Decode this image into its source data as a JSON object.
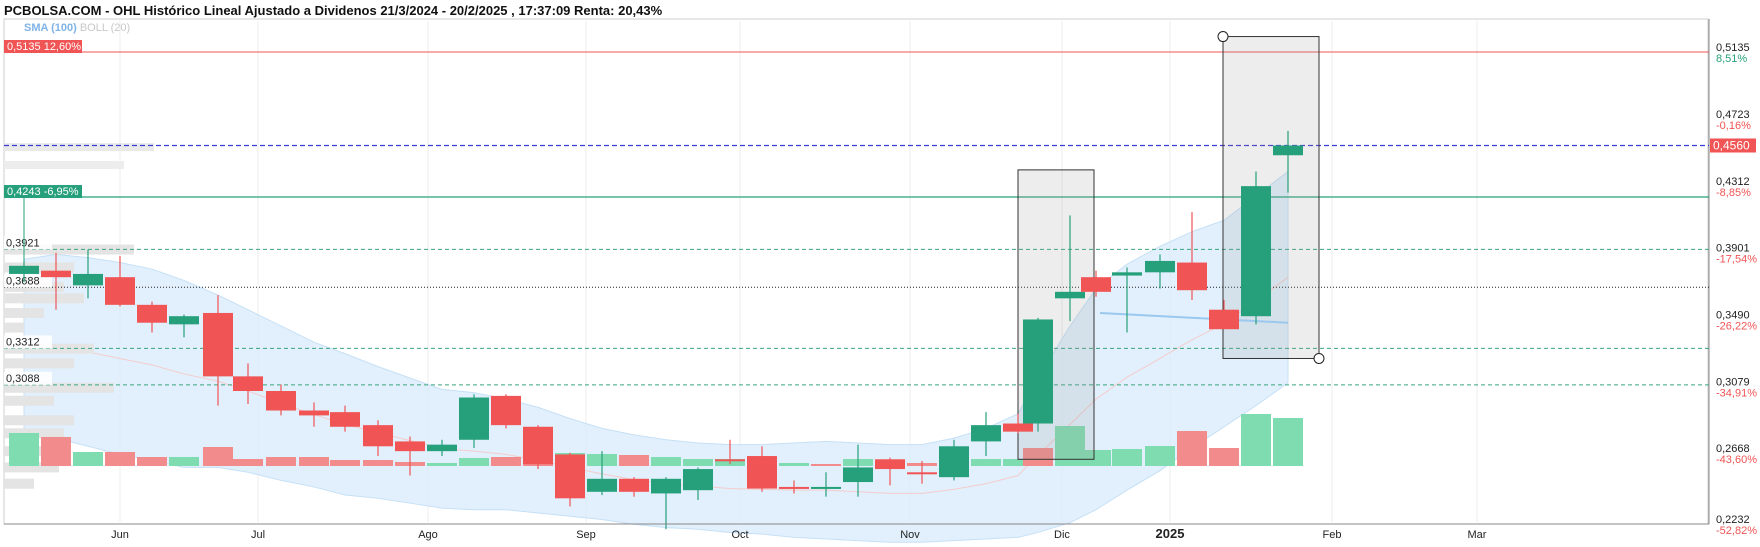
{
  "header": {
    "title": "PCBOLSA.COM - OHL Histórico Lineal Ajustado a Dividenos 21/3/2024 - 20/2/2025 , 17:37:09 Renta: 20,43%",
    "indicator_sma": "SMA (100)",
    "indicator_boll": "BOLL (20)"
  },
  "colors": {
    "up": "#26a07a",
    "down": "#f05454",
    "up_volume": "#7fdcb0",
    "down_volume": "#f28c8c",
    "band": "#dcedfb",
    "price_line": "#3b3bd9",
    "resistance": "#f05454",
    "support": "#26a07a"
  },
  "chart_data": {
    "type": "candlestick",
    "y_range": [
      0.205,
      0.535
    ],
    "right_axis": [
      {
        "price": "0,5135",
        "pct": "8,51%"
      },
      {
        "price": "0,4723",
        "pct": "-0,16%"
      },
      {
        "price": "0,4312",
        "pct": "-8,85%"
      },
      {
        "price": "0,3901",
        "pct": "-17,54%"
      },
      {
        "price": "0,3490",
        "pct": "-26,22%"
      },
      {
        "price": "0,3079",
        "pct": "-34,91%"
      },
      {
        "price": "0,2668",
        "pct": "-43,60%"
      },
      {
        "price": "0,2232",
        "pct": "-52,82%"
      }
    ],
    "current_price": {
      "value": 0.456,
      "label": "0,4560"
    },
    "resistance": {
      "value": 0.5135,
      "label": "0,5135",
      "pct": "12,60%"
    },
    "support": {
      "value": 0.4243,
      "label": "0,4243",
      "pct": "-6,95%"
    },
    "left_levels": [
      {
        "value": 0.3921,
        "label": "0,3921"
      },
      {
        "value": 0.3688,
        "label": "0,3688"
      },
      {
        "value": 0.3312,
        "label": "0,3312"
      },
      {
        "value": 0.3088,
        "label": "0,3088"
      }
    ],
    "x_labels": [
      "Jun",
      "Jul",
      "Ago",
      "Sep",
      "Oct",
      "Nov",
      "Dic",
      "2025",
      "Feb",
      "Mar"
    ],
    "candles": [
      {
        "o": 0.377,
        "h": 0.385,
        "l": 0.372,
        "c": 0.382
      },
      {
        "o": 0.379,
        "h": 0.39,
        "l": 0.355,
        "c": 0.375
      },
      {
        "o": 0.37,
        "h": 0.392,
        "l": 0.362,
        "c": 0.377
      },
      {
        "o": 0.375,
        "h": 0.388,
        "l": 0.357,
        "c": 0.358
      },
      {
        "o": 0.358,
        "h": 0.36,
        "l": 0.341,
        "c": 0.347
      },
      {
        "o": 0.346,
        "h": 0.352,
        "l": 0.338,
        "c": 0.351
      },
      {
        "o": 0.353,
        "h": 0.364,
        "l": 0.296,
        "c": 0.314
      },
      {
        "o": 0.314,
        "h": 0.322,
        "l": 0.297,
        "c": 0.305
      },
      {
        "o": 0.305,
        "h": 0.309,
        "l": 0.29,
        "c": 0.293
      },
      {
        "o": 0.293,
        "h": 0.298,
        "l": 0.283,
        "c": 0.29
      },
      {
        "o": 0.292,
        "h": 0.296,
        "l": 0.28,
        "c": 0.283
      },
      {
        "o": 0.284,
        "h": 0.287,
        "l": 0.265,
        "c": 0.271
      },
      {
        "o": 0.274,
        "h": 0.277,
        "l": 0.253,
        "c": 0.268
      },
      {
        "o": 0.268,
        "h": 0.275,
        "l": 0.265,
        "c": 0.272
      },
      {
        "o": 0.275,
        "h": 0.303,
        "l": 0.27,
        "c": 0.301
      },
      {
        "o": 0.302,
        "h": 0.303,
        "l": 0.282,
        "c": 0.284
      },
      {
        "o": 0.283,
        "h": 0.284,
        "l": 0.257,
        "c": 0.26
      },
      {
        "o": 0.266,
        "h": 0.267,
        "l": 0.234,
        "c": 0.239
      },
      {
        "o": 0.243,
        "h": 0.268,
        "l": 0.241,
        "c": 0.251
      },
      {
        "o": 0.251,
        "h": 0.252,
        "l": 0.24,
        "c": 0.243
      },
      {
        "o": 0.242,
        "h": 0.252,
        "l": 0.22,
        "c": 0.251
      },
      {
        "o": 0.244,
        "h": 0.258,
        "l": 0.238,
        "c": 0.257
      },
      {
        "o": 0.263,
        "h": 0.275,
        "l": 0.26,
        "c": 0.262
      },
      {
        "o": 0.265,
        "h": 0.271,
        "l": 0.243,
        "c": 0.245
      },
      {
        "o": 0.246,
        "h": 0.25,
        "l": 0.242,
        "c": 0.245
      },
      {
        "o": 0.245,
        "h": 0.255,
        "l": 0.24,
        "c": 0.246
      },
      {
        "o": 0.249,
        "h": 0.272,
        "l": 0.24,
        "c": 0.258
      },
      {
        "o": 0.263,
        "h": 0.264,
        "l": 0.247,
        "c": 0.257
      },
      {
        "o": 0.255,
        "h": 0.262,
        "l": 0.248,
        "c": 0.254
      },
      {
        "o": 0.252,
        "h": 0.275,
        "l": 0.25,
        "c": 0.271
      },
      {
        "o": 0.274,
        "h": 0.292,
        "l": 0.265,
        "c": 0.284
      },
      {
        "o": 0.285,
        "h": 0.291,
        "l": 0.279,
        "c": 0.28
      },
      {
        "o": 0.285,
        "h": 0.35,
        "l": 0.28,
        "c": 0.349
      },
      {
        "o": 0.362,
        "h": 0.413,
        "l": 0.348,
        "c": 0.366
      },
      {
        "o": 0.375,
        "h": 0.379,
        "l": 0.363,
        "c": 0.366
      },
      {
        "o": 0.376,
        "h": 0.381,
        "l": 0.341,
        "c": 0.378
      },
      {
        "o": 0.378,
        "h": 0.389,
        "l": 0.368,
        "c": 0.385
      },
      {
        "o": 0.384,
        "h": 0.415,
        "l": 0.361,
        "c": 0.367
      },
      {
        "o": 0.355,
        "h": 0.361,
        "l": 0.343,
        "c": 0.343
      },
      {
        "o": 0.351,
        "h": 0.44,
        "l": 0.346,
        "c": 0.431
      },
      {
        "o": 0.45,
        "h": 0.465,
        "l": 0.427,
        "c": 0.456
      }
    ],
    "candle_x": [
      24,
      56,
      88,
      120,
      152,
      184,
      218,
      248,
      281,
      314,
      345,
      378,
      410,
      442,
      474,
      506,
      538,
      570,
      602,
      634,
      666,
      698,
      730,
      762,
      794,
      826,
      858,
      890,
      922,
      954,
      986,
      1018,
      1038,
      1070,
      1096,
      1127,
      1160,
      1192,
      1224,
      1256,
      1288
    ],
    "candle_widths": [
      30,
      30,
      30,
      30,
      30,
      30,
      30,
      30,
      30,
      30,
      30,
      30,
      30,
      30,
      30,
      30,
      30,
      30,
      30,
      30,
      30,
      30,
      30,
      30,
      30,
      30,
      30,
      30,
      30,
      30,
      30,
      30,
      30,
      30,
      30,
      30,
      30,
      30,
      30,
      30,
      30
    ],
    "volume": [
      {
        "v": 0.33,
        "up": true
      },
      {
        "v": 0.29,
        "up": false
      },
      {
        "v": 0.14,
        "up": true
      },
      {
        "v": 0.14,
        "up": false
      },
      {
        "v": 0.09,
        "up": false
      },
      {
        "v": 0.09,
        "up": true
      },
      {
        "v": 0.19,
        "up": false
      },
      {
        "v": 0.07,
        "up": false
      },
      {
        "v": 0.09,
        "up": false
      },
      {
        "v": 0.09,
        "up": false
      },
      {
        "v": 0.06,
        "up": false
      },
      {
        "v": 0.06,
        "up": false
      },
      {
        "v": 0.04,
        "up": false
      },
      {
        "v": 0.03,
        "up": true
      },
      {
        "v": 0.08,
        "up": true
      },
      {
        "v": 0.09,
        "up": false
      },
      {
        "v": 0.12,
        "up": false
      },
      {
        "v": 0.13,
        "up": true
      },
      {
        "v": 0.12,
        "up": true
      },
      {
        "v": 0.11,
        "up": false
      },
      {
        "v": 0.09,
        "up": true
      },
      {
        "v": 0.07,
        "up": true
      },
      {
        "v": 0.07,
        "up": true
      },
      {
        "v": 0.04,
        "up": false
      },
      {
        "v": 0.03,
        "up": true
      },
      {
        "v": 0.02,
        "up": false
      },
      {
        "v": 0.07,
        "up": true
      },
      {
        "v": 0.02,
        "up": false
      },
      {
        "v": 0.03,
        "up": false
      },
      {
        "v": 0.07,
        "up": true
      },
      {
        "v": 0.07,
        "up": true
      },
      {
        "v": 0.07,
        "up": true
      },
      {
        "v": 0.18,
        "up": false
      },
      {
        "v": 0.4,
        "up": true
      },
      {
        "v": 0.16,
        "up": true
      },
      {
        "v": 0.17,
        "up": true
      },
      {
        "v": 0.2,
        "up": true
      },
      {
        "v": 0.35,
        "up": false
      },
      {
        "v": 0.18,
        "up": false
      },
      {
        "v": 0.52,
        "up": true
      },
      {
        "v": 0.48,
        "up": true
      }
    ],
    "bollinger": {
      "upper": [
        0.386,
        0.389,
        0.387,
        0.384,
        0.38,
        0.373,
        0.364,
        0.355,
        0.345,
        0.335,
        0.328,
        0.32,
        0.313,
        0.306,
        0.304,
        0.3,
        0.295,
        0.288,
        0.282,
        0.278,
        0.275,
        0.273,
        0.272,
        0.272,
        0.273,
        0.274,
        0.273,
        0.272,
        0.272,
        0.276,
        0.282,
        0.291,
        0.313,
        0.345,
        0.368,
        0.383,
        0.394,
        0.403,
        0.41,
        0.425,
        0.44
      ],
      "lower": [
        0.282,
        0.276,
        0.271,
        0.266,
        0.262,
        0.258,
        0.258,
        0.255,
        0.25,
        0.246,
        0.241,
        0.239,
        0.236,
        0.233,
        0.232,
        0.232,
        0.23,
        0.228,
        0.226,
        0.223,
        0.221,
        0.22,
        0.218,
        0.217,
        0.215,
        0.214,
        0.213,
        0.212,
        0.212,
        0.213,
        0.214,
        0.215,
        0.218,
        0.224,
        0.232,
        0.244,
        0.256,
        0.27,
        0.283,
        0.296,
        0.31
      ]
    },
    "sma_line": {
      "from_x": 1100,
      "to_x": 1288,
      "from_y": 0.353,
      "to_y": 0.347
    },
    "highlight_boxes": [
      {
        "x0": 1018,
        "x1": 1094,
        "hi": 0.441,
        "lo": 0.263
      },
      {
        "x0": 1223,
        "x1": 1319,
        "hi": 0.523,
        "lo": 0.325
      }
    ]
  }
}
